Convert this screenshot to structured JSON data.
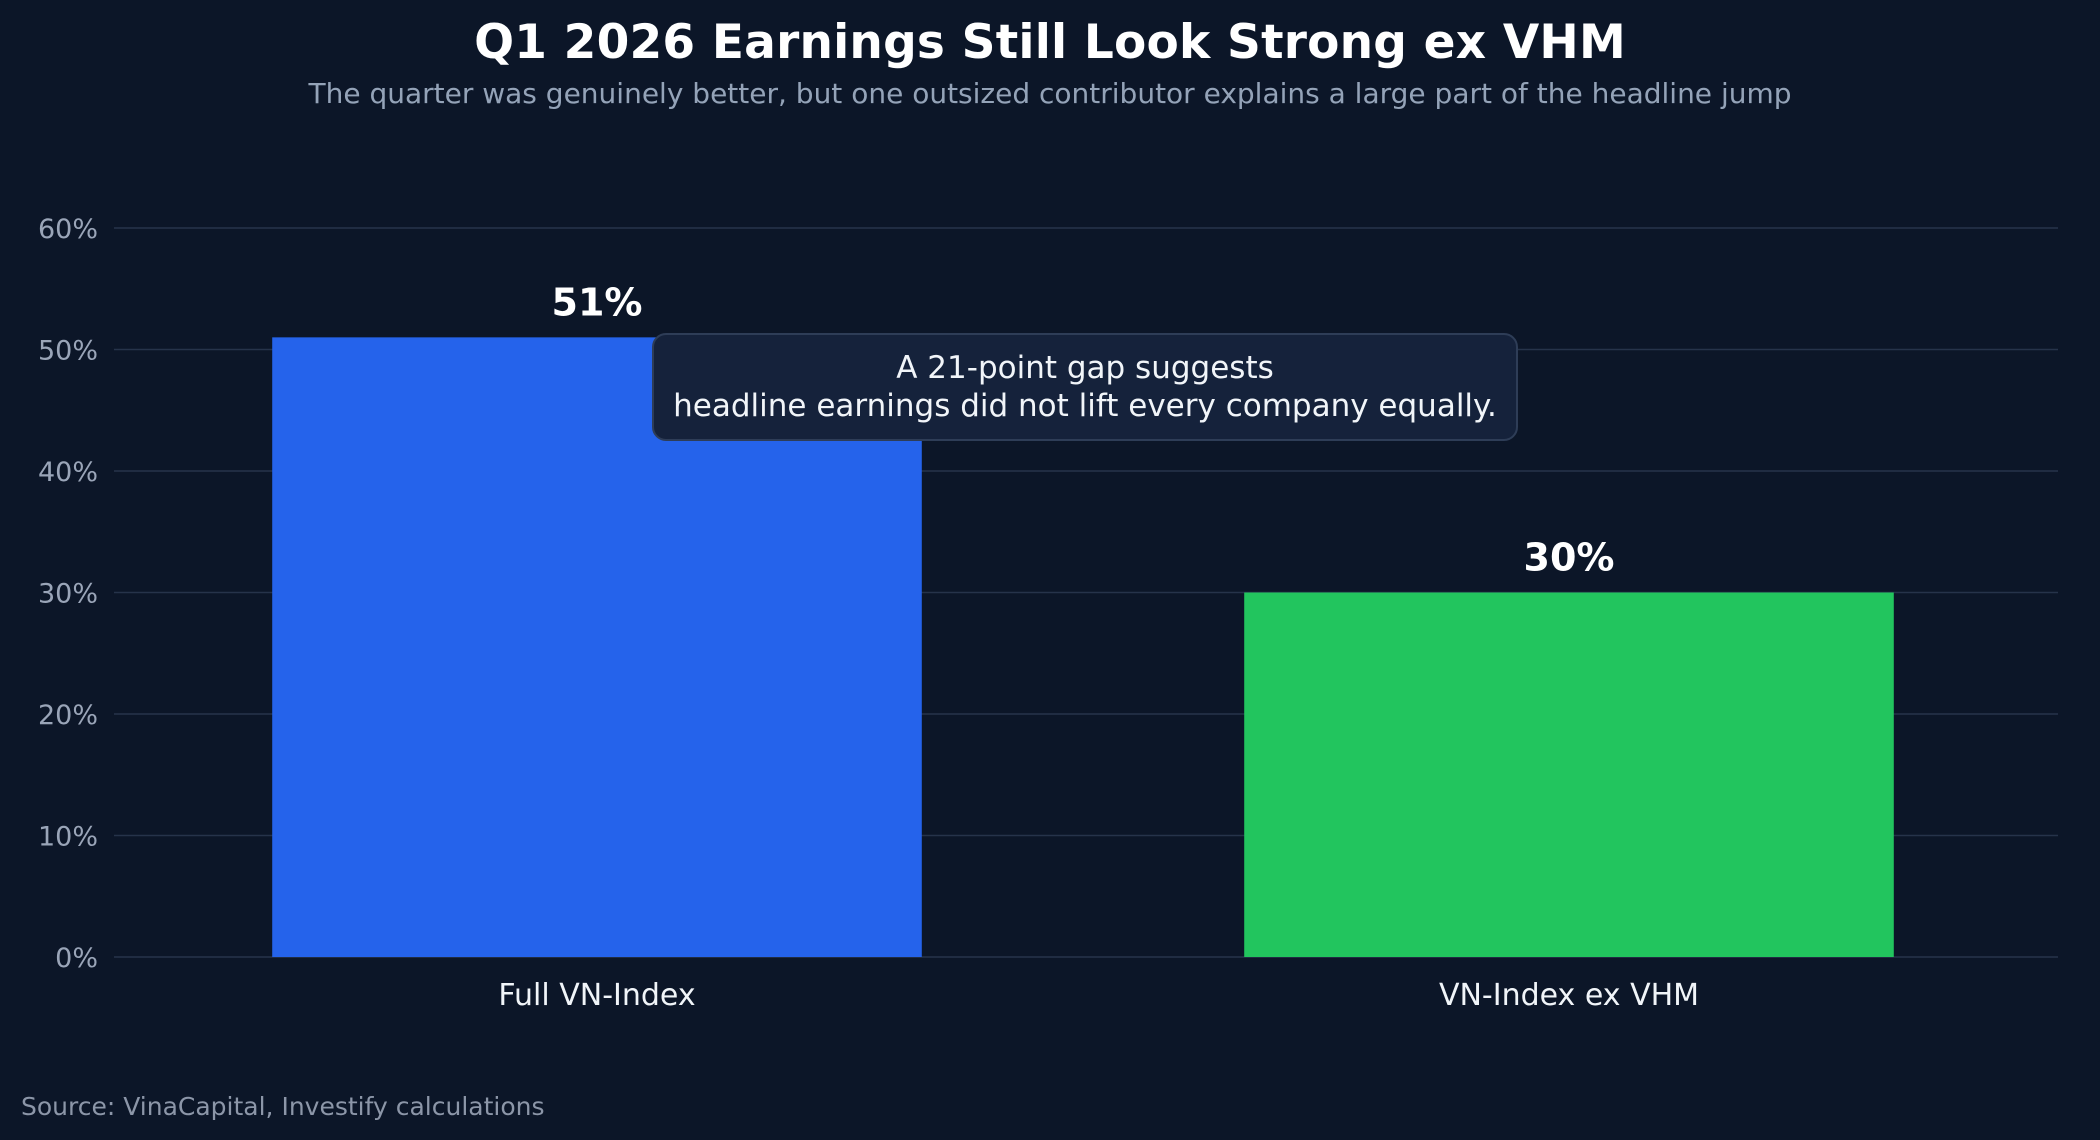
{
  "title": "Q1 2026 Earnings Still Look Strong ex VHM",
  "subtitle": "The quarter was genuinely better, but one outsized contributor explains a large part of the headline jump",
  "annotation": {
    "line1": "A 21-point gap suggests",
    "line2": "headline earnings did not lift every company equally."
  },
  "source": "Source: VinaCapital, Investify calculations",
  "colors": {
    "background": "#0c1628",
    "full_index_bar": "#2563eb",
    "ex_vhm_bar": "#22c55e"
  },
  "chart_data": {
    "type": "bar",
    "categories": [
      "Full VN-Index",
      "VN-Index ex VHM"
    ],
    "values": [
      51,
      30
    ],
    "value_labels": [
      "51%",
      "30%"
    ],
    "ylim": [
      0,
      60
    ],
    "yticks": [
      0,
      10,
      20,
      30,
      40,
      50,
      60
    ],
    "ytick_labels": [
      "0%",
      "10%",
      "20%",
      "30%",
      "40%",
      "50%",
      "60%"
    ],
    "xlabel": "",
    "ylabel": "",
    "grid": true,
    "legend": false
  }
}
